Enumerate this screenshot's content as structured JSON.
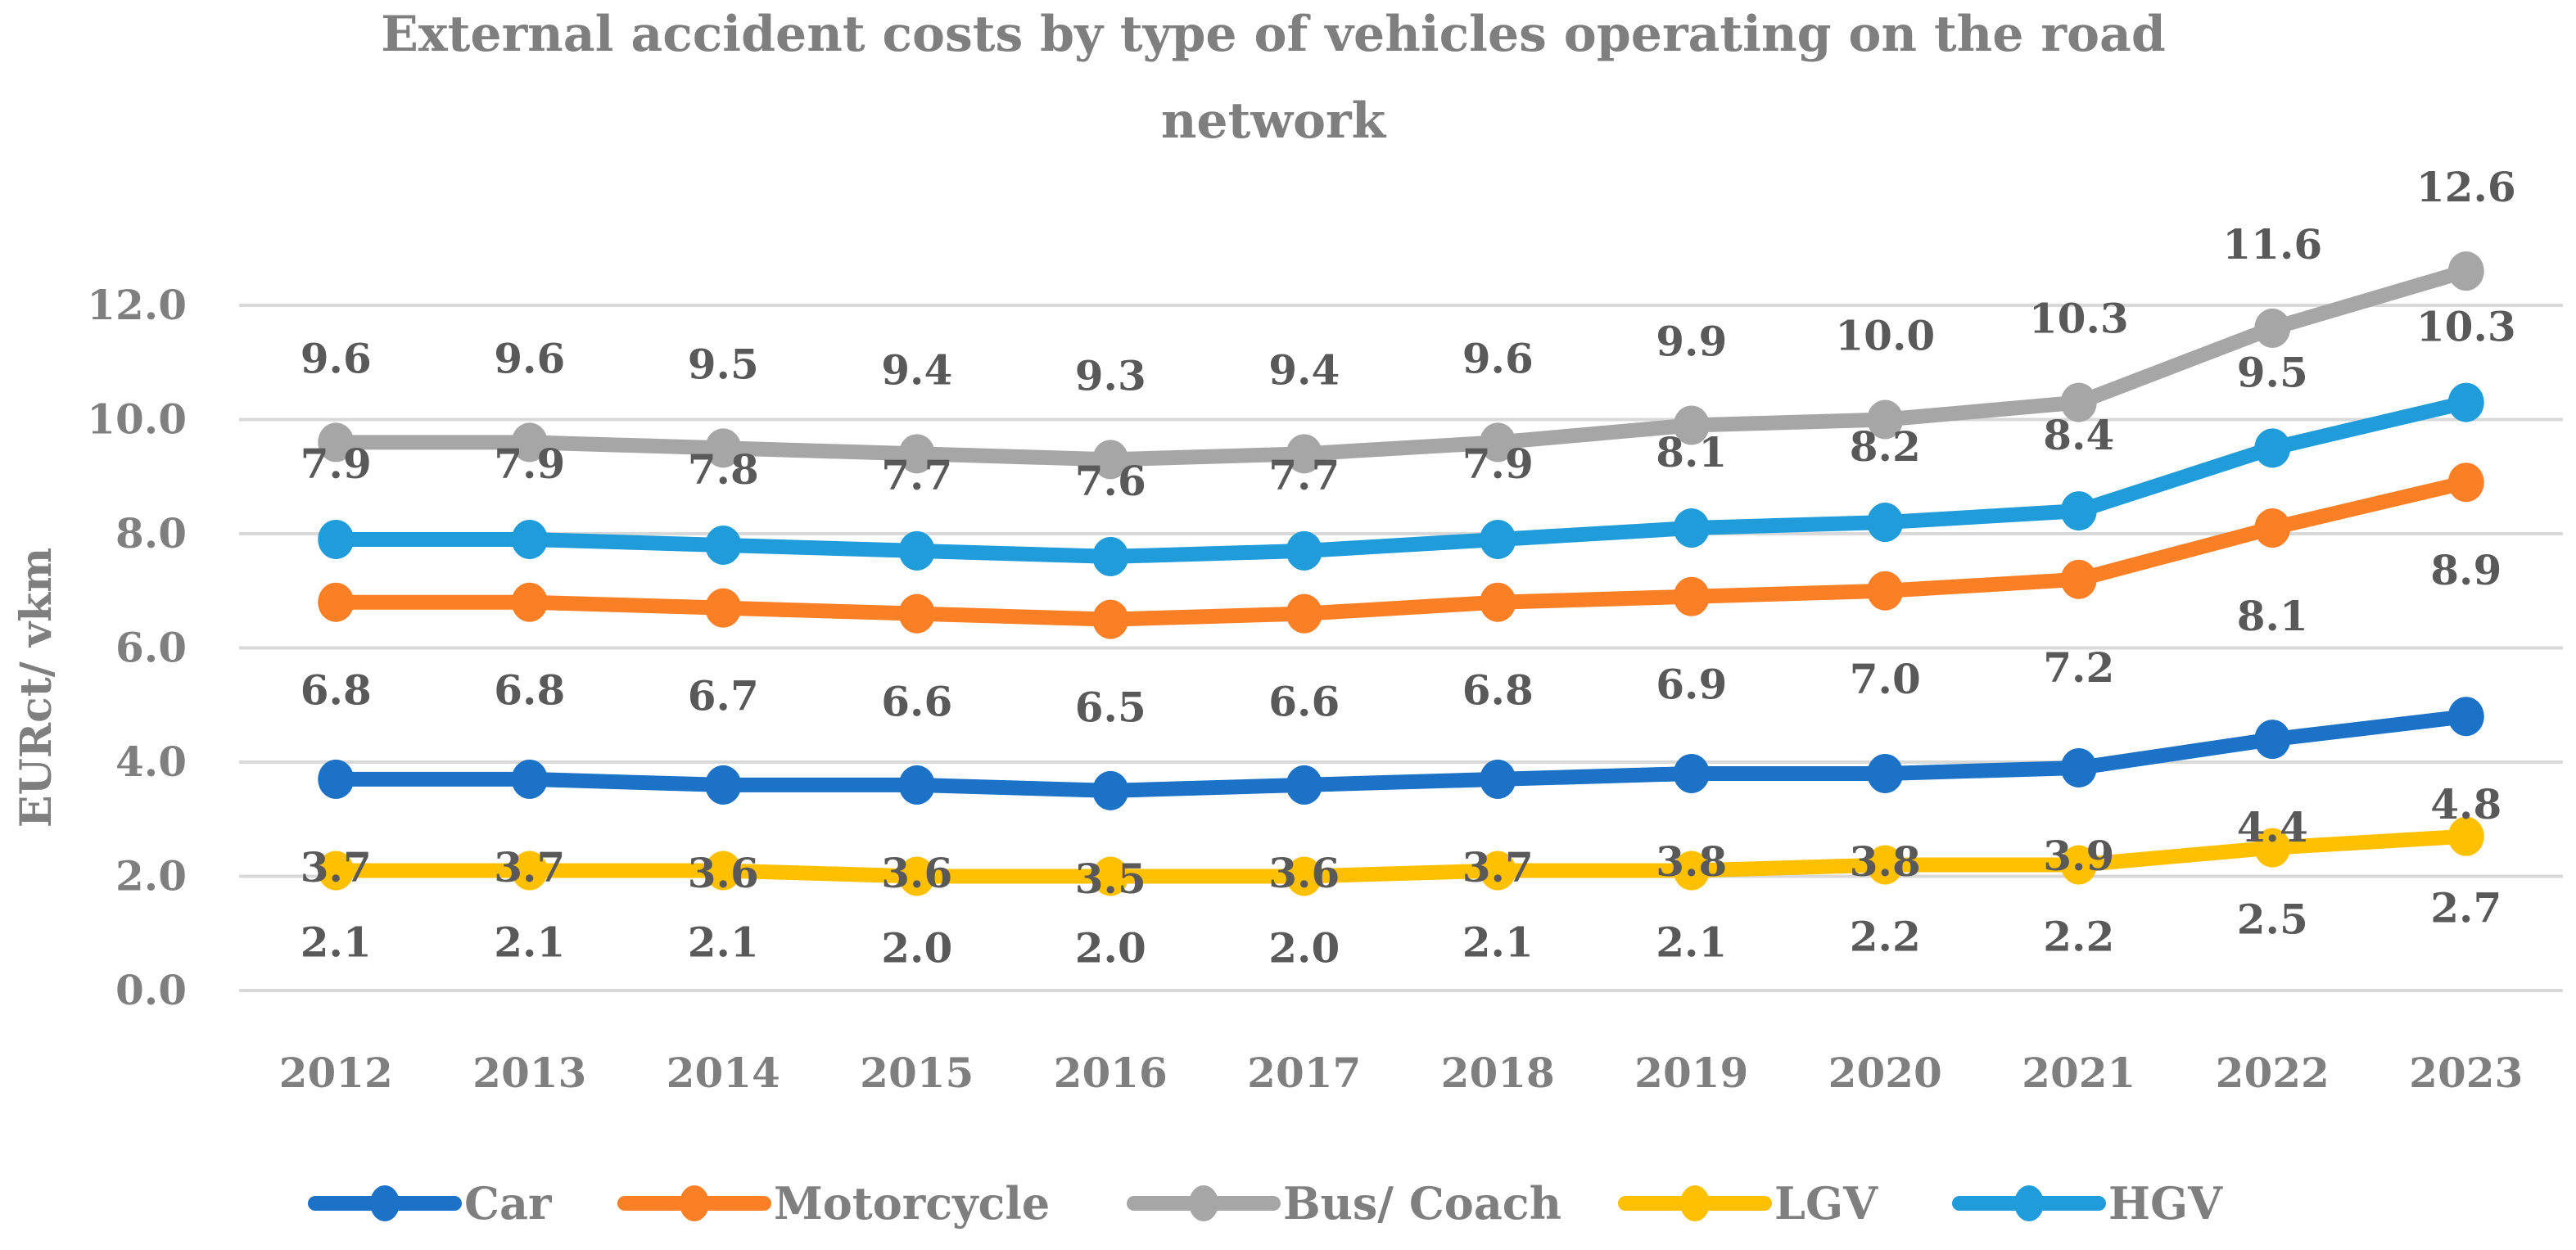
{
  "chart_data": {
    "type": "line",
    "title": "External accident costs by type of vehicles operating on the road network",
    "title_lines": [
      "External accident costs by type of vehicles operating on the road",
      "network"
    ],
    "xlabel": "",
    "ylabel": "EURct/ vkm",
    "ylim": [
      0,
      12
    ],
    "yticks": [
      0,
      2,
      4,
      6,
      8,
      10,
      12
    ],
    "ytick_labels": [
      "0.0",
      "2.0",
      "4.0",
      "6.0",
      "8.0",
      "10.0",
      "12.0"
    ],
    "grid": true,
    "legend_position": "bottom",
    "categories": [
      "2012",
      "2013",
      "2014",
      "2015",
      "2016",
      "2017",
      "2018",
      "2019",
      "2020",
      "2021",
      "2022",
      "2023"
    ],
    "series": [
      {
        "name": "Car",
        "color": "#1b72c6",
        "values": [
          3.7,
          3.7,
          3.6,
          3.6,
          3.5,
          3.6,
          3.7,
          3.8,
          3.8,
          3.9,
          4.4,
          4.8
        ]
      },
      {
        "name": "Motorcycle",
        "color": "#fb7f25",
        "values": [
          6.8,
          6.8,
          6.7,
          6.6,
          6.5,
          6.6,
          6.8,
          6.9,
          7.0,
          7.2,
          8.1,
          8.9
        ]
      },
      {
        "name": "Bus/ Coach",
        "color": "#a6a6a6",
        "values": [
          9.6,
          9.6,
          9.5,
          9.4,
          9.3,
          9.4,
          9.6,
          9.9,
          10.0,
          10.3,
          11.6,
          12.6
        ]
      },
      {
        "name": "LGV",
        "color": "#ffc000",
        "values": [
          2.1,
          2.1,
          2.1,
          2.0,
          2.0,
          2.0,
          2.1,
          2.1,
          2.2,
          2.2,
          2.5,
          2.7
        ]
      },
      {
        "name": "HGV",
        "color": "#1f9cd9",
        "values": [
          7.9,
          7.9,
          7.8,
          7.7,
          7.6,
          7.7,
          7.9,
          8.1,
          8.2,
          8.4,
          9.5,
          10.3
        ]
      }
    ]
  }
}
